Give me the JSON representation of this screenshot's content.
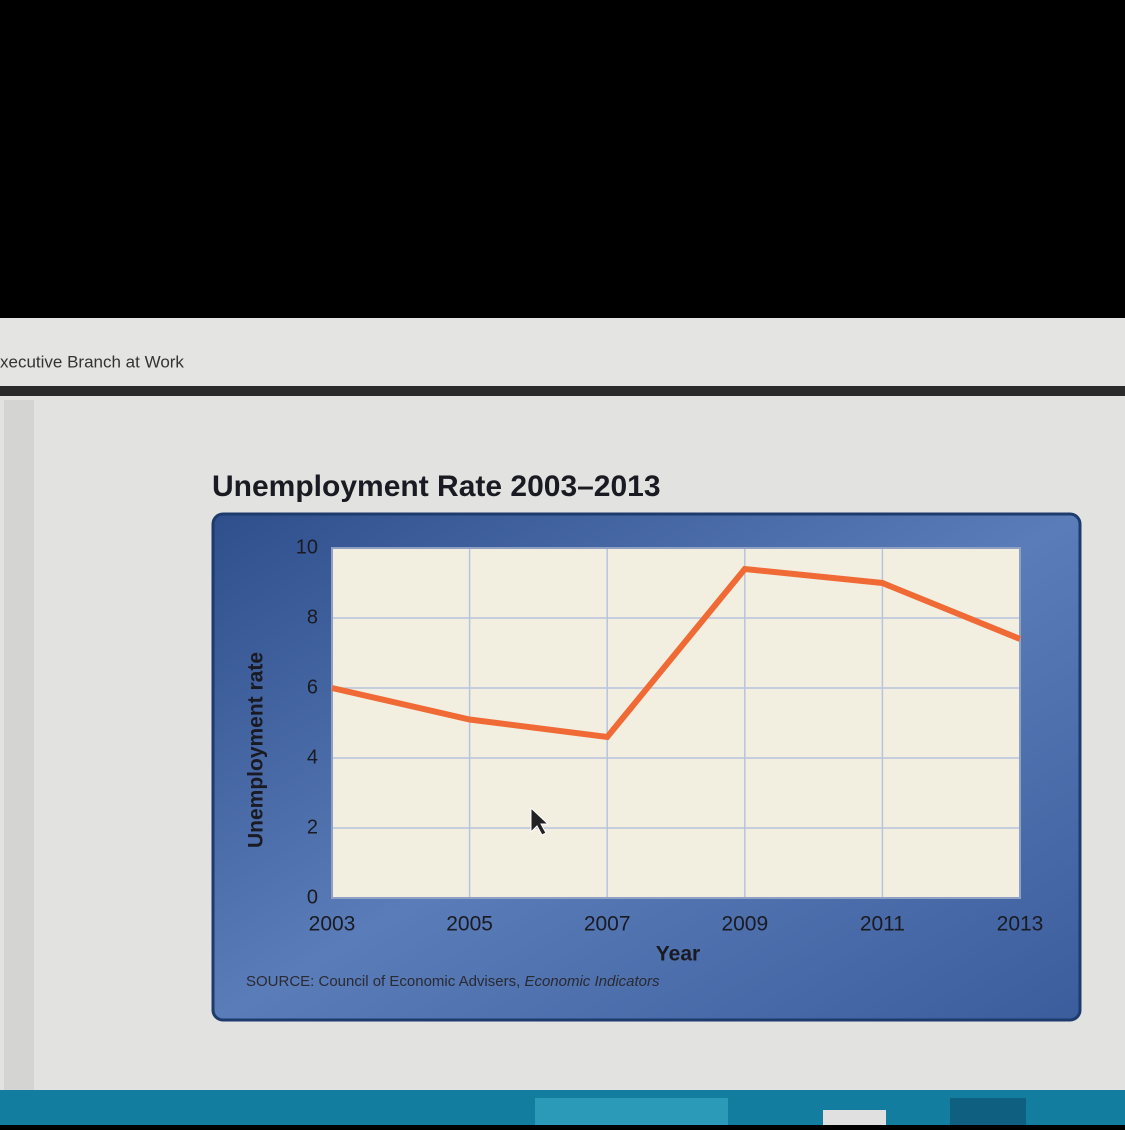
{
  "header": {
    "title": "xecutive Branch at Work"
  },
  "chart_data": {
    "type": "line",
    "title": "Unemployment Rate 2003–2013",
    "x": [
      2003,
      2005,
      2007,
      2009,
      2011,
      2013
    ],
    "values": [
      6.0,
      5.1,
      4.6,
      9.4,
      9.0,
      7.4
    ],
    "color": "#f06a35",
    "xlim": [
      2003,
      2013
    ],
    "xticks": [
      2003,
      2005,
      2007,
      2009,
      2011,
      2013
    ],
    "ylim": [
      0,
      10
    ],
    "yticks": [
      0,
      2,
      4,
      6,
      8,
      10
    ],
    "grid": true,
    "x_label": "Year",
    "y_label": "Unemployment rate",
    "source": {
      "text": "SOURCE: Council of Economic Advisers,",
      "publication": "Economic Indicators"
    }
  }
}
